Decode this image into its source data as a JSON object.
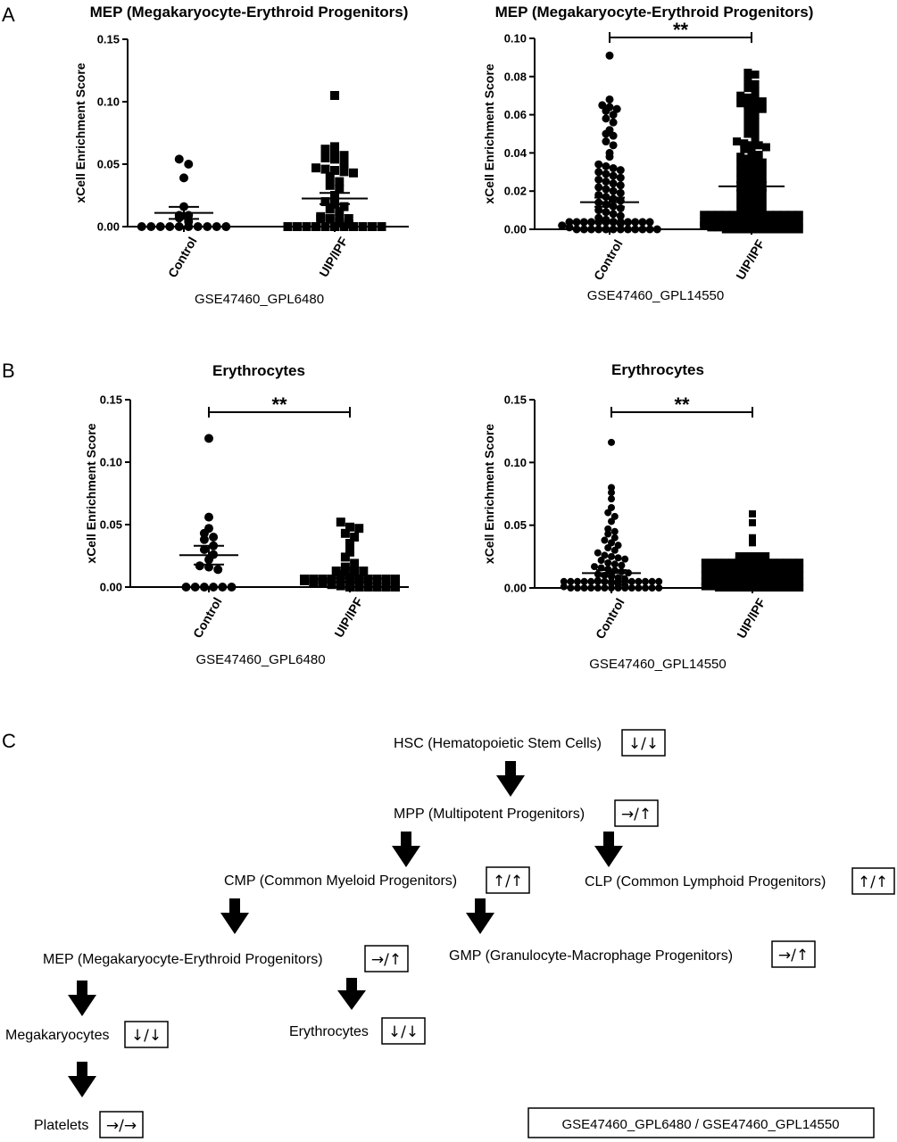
{
  "panels": {
    "A": "A",
    "B": "B",
    "C": "C"
  },
  "chart_data": [
    {
      "type": "scatter",
      "title": "MEP (Megakaryocyte-Erythroid Progenitors)",
      "xlabel": "GSE47460_GPL6480",
      "ylabel": "xCell Enrichment Score",
      "categories": [
        "Control",
        "UIP/IPF"
      ],
      "ylim": [
        0,
        0.15
      ],
      "yticks": [
        "0.00",
        "0.05",
        "0.10",
        "0.15"
      ],
      "significance": "",
      "series": [
        {
          "marker": "circle",
          "mean": 0.011,
          "sem": 0.0048,
          "values": [
            0.054,
            0.05,
            0.039,
            0.016,
            0.009,
            0.009,
            0.007,
            0.004,
            0.0,
            0.0,
            0.0,
            0.0,
            0.0,
            0.0,
            0.0,
            0.0,
            0.0,
            0.0
          ]
        },
        {
          "marker": "square",
          "mean": 0.0225,
          "sem": 0.0045,
          "values": [
            0.105,
            0.064,
            0.062,
            0.061,
            0.057,
            0.055,
            0.054,
            0.05,
            0.047,
            0.046,
            0.045,
            0.044,
            0.043,
            0.04,
            0.036,
            0.033,
            0.03,
            0.025,
            0.02,
            0.018,
            0.016,
            0.014,
            0.012,
            0.008,
            0.006,
            0.004,
            0.002,
            0.0,
            0.0,
            0.0,
            0.0,
            0.0,
            0.0,
            0.0,
            0.0,
            0.0,
            0.0,
            0.0,
            0.0,
            0.0,
            0.0,
            0.0
          ]
        }
      ]
    },
    {
      "type": "scatter",
      "title": "MEP (Megakaryocyte-Erythroid Progenitors)",
      "xlabel": "GSE47460_GPL14550",
      "ylabel": "xCell Enrichment Score",
      "categories": [
        "Control",
        "UIP/IPF"
      ],
      "ylim": [
        0,
        0.1
      ],
      "yticks": [
        "0.00",
        "0.02",
        "0.04",
        "0.06",
        "0.08",
        "0.10"
      ],
      "significance": "**",
      "series": [
        {
          "marker": "circle",
          "mean": 0.0142,
          "sem": 0.0024,
          "values": [
            0.091,
            0.068,
            0.065,
            0.064,
            0.063,
            0.062,
            0.06,
            0.058,
            0.056,
            0.052,
            0.05,
            0.049,
            0.046,
            0.044,
            0.04,
            0.038,
            0.034,
            0.033,
            0.032,
            0.031,
            0.03,
            0.029,
            0.028,
            0.027,
            0.026,
            0.025,
            0.024,
            0.023,
            0.022,
            0.021,
            0.02,
            0.019,
            0.018,
            0.017,
            0.016,
            0.015,
            0.014,
            0.013,
            0.012,
            0.011,
            0.01,
            0.009,
            0.008,
            0.007,
            0.006,
            0.005,
            0.004,
            0.003,
            0.002,
            0.001,
            0.0,
            0.0,
            0.0,
            0.0,
            0.0,
            0.0,
            0.0,
            0.0,
            0.0,
            0.0,
            0.0,
            0.0,
            0.0,
            0.0,
            0.0,
            0.0,
            0.0,
            0.0,
            0.0,
            0.0,
            0.0,
            0.0,
            0.0,
            0.0
          ]
        },
        {
          "marker": "square",
          "mean": 0.0225,
          "sem": 0.0022,
          "values": [
            0.082,
            0.081,
            0.078,
            0.076,
            0.074,
            0.072,
            0.07,
            0.069,
            0.068,
            0.067,
            0.066,
            0.065,
            0.064,
            0.063,
            0.062,
            0.06,
            0.058,
            0.056,
            0.054,
            0.052,
            0.05,
            0.048,
            0.046,
            0.045,
            0.044,
            0.044,
            0.043,
            0.042,
            0.04,
            0.039,
            0.038,
            0.037,
            0.036,
            0.035,
            0.034,
            0.033,
            0.032,
            0.031,
            0.03,
            0.029,
            0.028,
            0.027,
            0.026,
            0.025,
            0.024,
            0.023,
            0.022,
            0.021,
            0.02,
            0.019,
            0.018,
            0.017,
            0.016,
            0.015,
            0.014,
            0.013,
            0.012,
            0.011,
            0.01,
            0.009,
            0.008,
            0.007,
            0.006,
            0.005,
            0.004,
            0.003,
            0.002,
            0.001,
            0.001,
            0.0,
            0.0,
            0.0,
            0.0,
            0.0,
            0.0,
            0.0,
            0.0,
            0.0,
            0.0,
            0.0,
            0.0,
            0.0,
            0.0,
            0.0,
            0.0,
            0.0,
            0.0,
            0.0,
            0.0,
            0.0,
            0.0,
            0.0,
            0.0,
            0.0,
            0.0,
            0.0,
            0.0,
            0.0,
            0.0,
            0.0,
            0.0,
            0.0,
            0.0,
            0.0,
            0.0,
            0.0,
            0.0,
            0.0
          ]
        }
      ]
    },
    {
      "type": "scatter",
      "title": "Erythrocytes",
      "xlabel": "GSE47460_GPL6480",
      "ylabel": "xCell Enrichment Score",
      "categories": [
        "Control",
        "UIP/IPF"
      ],
      "ylim": [
        0,
        0.15
      ],
      "yticks": [
        "0.00",
        "0.05",
        "0.10",
        "0.15"
      ],
      "significance": "**",
      "series": [
        {
          "marker": "circle",
          "mean": 0.0255,
          "sem": 0.0075,
          "values": [
            0.119,
            0.056,
            0.047,
            0.043,
            0.04,
            0.038,
            0.033,
            0.03,
            0.026,
            0.022,
            0.017,
            0.016,
            0.014,
            0.0,
            0.0,
            0.0,
            0.0,
            0.0,
            0.0
          ]
        },
        {
          "marker": "square",
          "mean": 0.0068,
          "sem": 0.0025,
          "values": [
            0.052,
            0.048,
            0.047,
            0.043,
            0.04,
            0.035,
            0.028,
            0.024,
            0.019,
            0.016,
            0.012,
            0.01,
            0.008,
            0.006,
            0.005,
            0.004,
            0.003,
            0.002,
            0.001,
            0.0,
            0.0,
            0.0,
            0.0,
            0.0,
            0.0,
            0.0,
            0.0,
            0.0,
            0.0,
            0.0,
            0.0,
            0.0,
            0.0,
            0.0,
            0.0,
            0.0,
            0.0,
            0.0,
            0.0,
            0.0
          ]
        }
      ]
    },
    {
      "type": "scatter",
      "title": "Erythrocytes",
      "xlabel": "GSE47460_GPL14550",
      "ylabel": "xCell Enrichment Score",
      "categories": [
        "Control",
        "UIP/IPF"
      ],
      "ylim": [
        0,
        0.15
      ],
      "yticks": [
        "0.00",
        "0.05",
        "0.10",
        "0.15"
      ],
      "significance": "**",
      "series": [
        {
          "marker": "circle",
          "mean": 0.0118,
          "sem": 0.0024,
          "values": [
            0.116,
            0.08,
            0.076,
            0.071,
            0.064,
            0.06,
            0.057,
            0.053,
            0.047,
            0.045,
            0.043,
            0.04,
            0.038,
            0.036,
            0.034,
            0.032,
            0.03,
            0.028,
            0.026,
            0.025,
            0.024,
            0.023,
            0.022,
            0.02,
            0.019,
            0.018,
            0.017,
            0.016,
            0.015,
            0.014,
            0.013,
            0.012,
            0.011,
            0.01,
            0.009,
            0.008,
            0.007,
            0.006,
            0.005,
            0.004,
            0.003,
            0.002,
            0.001,
            0.0,
            0.0,
            0.0,
            0.0,
            0.0,
            0.0,
            0.0,
            0.0,
            0.0,
            0.0,
            0.0,
            0.0,
            0.0,
            0.0,
            0.0,
            0.0,
            0.0,
            0.0,
            0.0,
            0.0,
            0.0,
            0.0,
            0.0,
            0.0,
            0.0,
            0.0,
            0.0,
            0.0,
            0.0,
            0.0
          ]
        },
        {
          "marker": "square",
          "mean": 0.0042,
          "sem": 0.0012,
          "values": [
            0.059,
            0.052,
            0.04,
            0.036,
            0.025,
            0.024,
            0.023,
            0.022,
            0.021,
            0.02,
            0.019,
            0.018,
            0.017,
            0.016,
            0.015,
            0.014,
            0.013,
            0.012,
            0.011,
            0.01,
            0.009,
            0.008,
            0.007,
            0.006,
            0.005,
            0.004,
            0.003,
            0.002,
            0.001,
            0.001,
            0.0,
            0.0,
            0.0,
            0.0,
            0.0,
            0.0,
            0.0,
            0.0,
            0.0,
            0.0,
            0.0,
            0.0,
            0.0,
            0.0,
            0.0,
            0.0,
            0.0,
            0.0,
            0.0,
            0.0,
            0.0,
            0.0,
            0.0,
            0.0,
            0.0,
            0.0,
            0.0,
            0.0,
            0.0,
            0.0,
            0.0,
            0.0,
            0.0,
            0.0,
            0.0,
            0.0,
            0.0,
            0.0,
            0.0,
            0.0,
            0.0,
            0.0,
            0.0,
            0.0,
            0.0,
            0.0,
            0.0,
            0.0,
            0.0,
            0.0,
            0.0,
            0.0,
            0.0,
            0.0,
            0.0,
            0.0,
            0.0,
            0.0,
            0.0,
            0.0,
            0.0,
            0.0,
            0.0,
            0.0,
            0.0,
            0.0,
            0.0,
            0.0,
            0.0,
            0.0,
            0.0,
            0.0,
            0.0,
            0.0,
            0.0,
            0.0,
            0.0,
            0.0
          ]
        }
      ]
    }
  ],
  "hierarchy": {
    "nodes": {
      "hsc": {
        "label": "HSC (Hematopoietic Stem Cells)",
        "status": "↓/↓"
      },
      "mpp": {
        "label": "MPP (Multipotent Progenitors)",
        "status": "→/↑"
      },
      "cmp": {
        "label": "CMP (Common Myeloid Progenitors)",
        "status": "↑/↑"
      },
      "clp": {
        "label": "CLP (Common Lymphoid Progenitors)",
        "status": "↑/↑"
      },
      "mep": {
        "label": "MEP (Megakaryocyte-Erythroid Progenitors)",
        "status": "→/↑"
      },
      "gmp": {
        "label": "GMP (Granulocyte-Macrophage Progenitors)",
        "status": "→/↑"
      },
      "mk": {
        "label": "Megakaryocytes",
        "status": "↓/↓"
      },
      "ery": {
        "label": "Erythrocytes",
        "status": "↓/↓"
      },
      "plt": {
        "label": "Platelets",
        "status": "→/→"
      }
    },
    "legend": "GSE47460_GPL6480 / GSE47460_GPL14550"
  }
}
